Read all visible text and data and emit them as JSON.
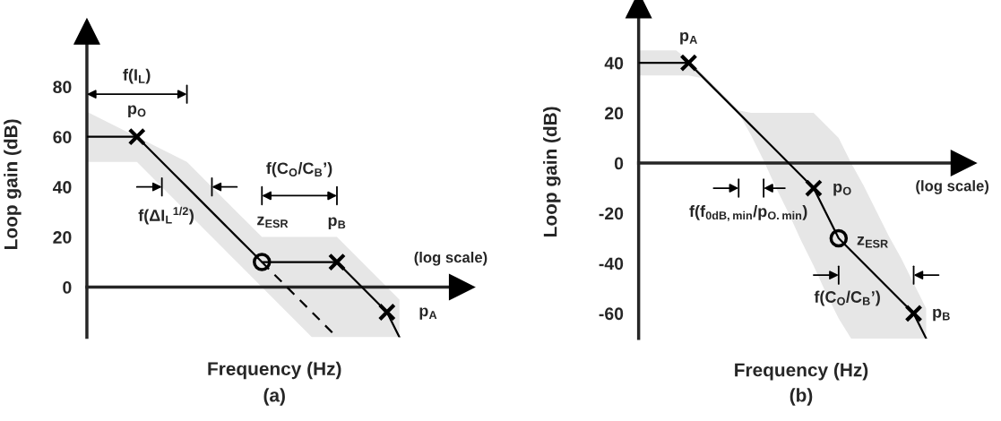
{
  "chart_data": [
    {
      "type": "line",
      "xlabel": "Frequency (Hz)",
      "ylabel": "Loop gain (dB)",
      "ylim": [
        -20,
        102
      ],
      "yticks": [
        0,
        20,
        40,
        60,
        80
      ],
      "categories": [
        null,
        null,
        null,
        null,
        null,
        null,
        null,
        null,
        null,
        null,
        null,
        null,
        null,
        null,
        null,
        null,
        null,
        null,
        null,
        null,
        null,
        null,
        null,
        null,
        null,
        null
      ],
      "series": [
        {
          "color": "#000000",
          "line_style": "solid",
          "values": [
            60,
            60,
            60,
            60,
            60,
            55,
            50,
            45,
            40,
            35,
            30,
            25,
            20,
            15,
            10,
            10,
            10,
            10,
            10,
            10,
            10,
            5,
            0,
            -5,
            -10,
            -20
          ],
          "lower": [
            50,
            50,
            50,
            50,
            50,
            45,
            40,
            35,
            30,
            25,
            20,
            15,
            10,
            5,
            0,
            -5,
            -10,
            -15,
            -20,
            -20,
            -20,
            -20,
            -20,
            -20,
            -20,
            -20
          ],
          "upper": [
            70,
            67.5,
            65,
            62.5,
            60,
            57.5,
            55,
            52.5,
            50,
            45,
            40,
            35,
            30,
            25,
            20,
            20,
            20,
            20,
            20,
            20,
            20,
            15,
            10,
            5,
            0,
            -5
          ]
        },
        {
          "color": "#000000",
          "line_style": "dashed",
          "values": [
            null,
            null,
            null,
            null,
            null,
            null,
            null,
            null,
            null,
            null,
            null,
            null,
            null,
            null,
            10,
            5,
            0,
            -5,
            -10,
            -15,
            -20,
            null,
            null,
            null,
            null,
            null
          ]
        },
        {
          "type": "scatter",
          "color": "#000000",
          "marker": "cross",
          "values": [
            null,
            null,
            null,
            null,
            60,
            null,
            null,
            null,
            null,
            null,
            null,
            null,
            null,
            null,
            null,
            null,
            null,
            null,
            null,
            null,
            10,
            null,
            null,
            null,
            -10,
            null
          ]
        },
        {
          "type": "scatter",
          "color": "#000000",
          "marker": "circle",
          "values": [
            null,
            null,
            null,
            null,
            null,
            null,
            null,
            null,
            null,
            null,
            null,
            null,
            null,
            null,
            10,
            null,
            null,
            null,
            null,
            null,
            null,
            null,
            null,
            null,
            null,
            null
          ]
        }
      ],
      "annotations": [
        "p$_{O}$",
        "z$_{ESR}$",
        "p$_{B}$",
        "p$_{A}$",
        "f(I$_{L}$)",
        "f(ΔI$_{L}$$^{1/2}$)",
        "f(C$_{O}$/C$_{B}$’)",
        "(log scale)",
        "(a)"
      ]
    },
    {
      "type": "line",
      "xlabel": "Frequency (Hz)",
      "ylabel": "Loop gain (dB)",
      "ylim": [
        -70,
        63
      ],
      "yticks": [
        -60,
        -40,
        -20,
        0,
        20,
        40
      ],
      "categories": [
        null,
        null,
        null,
        null,
        null,
        null,
        null,
        null,
        null,
        null,
        null,
        null,
        null,
        null,
        null,
        null,
        null,
        null,
        null,
        null,
        null,
        null,
        null,
        null
      ],
      "series": [
        {
          "color": "#000000",
          "line_style": "solid",
          "values": [
            40,
            40,
            40,
            40,
            40,
            35,
            30,
            25,
            20,
            15,
            10,
            5,
            0,
            -5,
            -10,
            -20,
            -30,
            -35,
            -40,
            -45,
            -50,
            -55,
            -60,
            -70
          ],
          "lower": [
            35,
            35,
            35,
            35,
            35,
            34,
            29,
            25,
            20,
            11,
            1,
            -10,
            -20,
            -31,
            -41,
            -52,
            -62,
            -70,
            -70,
            -70,
            -70,
            -70,
            -70,
            -70
          ],
          "upper": [
            45,
            45,
            45,
            45,
            41,
            36,
            31,
            26,
            21,
            20,
            20,
            20,
            20,
            20,
            20,
            15,
            10,
            0,
            -9,
            -19,
            -29,
            -38,
            -48,
            -58
          ]
        },
        {
          "type": "scatter",
          "color": "#000000",
          "marker": "cross",
          "values": [
            null,
            null,
            null,
            null,
            40,
            null,
            null,
            null,
            null,
            null,
            null,
            null,
            null,
            null,
            -10,
            null,
            null,
            null,
            null,
            null,
            null,
            null,
            -60,
            null
          ]
        },
        {
          "type": "scatter",
          "color": "#000000",
          "marker": "circle",
          "values": [
            null,
            null,
            null,
            null,
            null,
            null,
            null,
            null,
            null,
            null,
            null,
            null,
            null,
            null,
            null,
            null,
            -30,
            null,
            null,
            null,
            null,
            null,
            null,
            null
          ]
        }
      ],
      "annotations": [
        "p$_{A}$",
        "p$_{O}$",
        "z$_{ESR}$",
        "p$_{B}$",
        "f(f$_{0dB,min}$/p$_{O.min}$)",
        "f(C$_{O}$/C$_{B}$’)",
        "(log scale)",
        "(b)"
      ]
    }
  ]
}
